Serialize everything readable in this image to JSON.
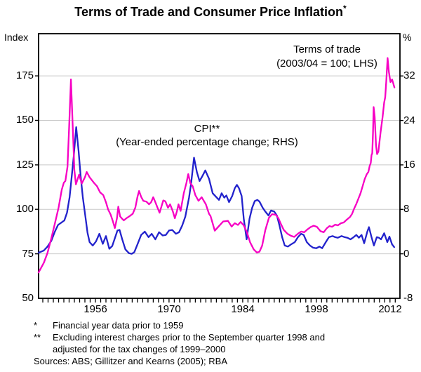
{
  "title": {
    "text": "Terms of Trade and Consumer Price Inflation",
    "marker": "*"
  },
  "axes": {
    "left_unit": "Index",
    "right_unit": "%",
    "left_ticks": [
      175,
      150,
      125,
      100,
      75,
      50
    ],
    "right_ticks": [
      32,
      24,
      16,
      8,
      0,
      -8
    ],
    "x_ticks": [
      1956,
      1970,
      1984,
      1998,
      2012
    ]
  },
  "legend": {
    "tot_label": "Terms of trade",
    "tot_sub": "(2003/04 = 100; LHS)",
    "cpi_label": "CPI**",
    "cpi_sub": "(Year-ended percentage change; RHS)"
  },
  "footnotes": [
    {
      "marker": "*",
      "lines": [
        "Financial year data prior to 1959"
      ]
    },
    {
      "marker": "**",
      "lines": [
        "Excluding interest charges prior to the September quarter 1998 and",
        "adjusted for the tax changes of 1999–2000"
      ]
    }
  ],
  "sources": "Sources: ABS; Gillitzer and Kearns (2005); RBA",
  "colors": {
    "terms_of_trade": "#f700c4",
    "cpi": "#2222cc",
    "grid": "#c9c9c9",
    "frame": "#000000"
  },
  "chart_data": {
    "type": "line",
    "title": "Terms of Trade and Consumer Price Inflation",
    "x_range": [
      1945.2,
      2013.9
    ],
    "x_label_years": [
      1956,
      1970,
      1984,
      1998,
      2012
    ],
    "x_minor_tick_every": 1,
    "grid": true,
    "left_axis": {
      "label": "Index (2003/04 = 100)",
      "range": [
        50,
        198.7
      ],
      "gridlines": [
        75,
        100,
        125,
        150,
        175
      ]
    },
    "right_axis": {
      "label": "Year-ended percentage change (%)",
      "range": [
        -8,
        39.6
      ],
      "gridline_values": [
        0,
        8,
        16,
        24,
        32
      ]
    },
    "series": [
      {
        "name": "Terms of trade (2003/04 = 100; LHS)",
        "axis": "left",
        "color": "#f700c4",
        "points": [
          [
            1945.2,
            64.5
          ],
          [
            1946.2,
            70
          ],
          [
            1946.9,
            75.5
          ],
          [
            1947.6,
            83.5
          ],
          [
            1948.3,
            92
          ],
          [
            1949.0,
            101
          ],
          [
            1949.6,
            111
          ],
          [
            1950.0,
            115
          ],
          [
            1950.3,
            116
          ],
          [
            1950.7,
            124
          ],
          [
            1951.0,
            146
          ],
          [
            1951.35,
            173
          ],
          [
            1951.7,
            146
          ],
          [
            1952.0,
            122
          ],
          [
            1952.3,
            114
          ],
          [
            1952.9,
            119.5
          ],
          [
            1953.4,
            114.5
          ],
          [
            1954.0,
            118
          ],
          [
            1954.35,
            121
          ],
          [
            1954.9,
            118
          ],
          [
            1955.7,
            115
          ],
          [
            1956.3,
            113
          ],
          [
            1956.9,
            109.5
          ],
          [
            1957.5,
            108
          ],
          [
            1958.0,
            104
          ],
          [
            1958.4,
            100
          ],
          [
            1958.9,
            97
          ],
          [
            1959.3,
            93.5
          ],
          [
            1959.7,
            89.5
          ],
          [
            1960.1,
            95
          ],
          [
            1960.35,
            101.5
          ],
          [
            1960.7,
            96
          ],
          [
            1961.0,
            95
          ],
          [
            1961.4,
            93.8
          ],
          [
            1962.0,
            95.2
          ],
          [
            1962.5,
            96.2
          ],
          [
            1963.1,
            97.5
          ],
          [
            1963.6,
            101
          ],
          [
            1964.0,
            107
          ],
          [
            1964.3,
            110.3
          ],
          [
            1964.7,
            107
          ],
          [
            1965.1,
            104.8
          ],
          [
            1965.7,
            104.3
          ],
          [
            1966.2,
            102.8
          ],
          [
            1966.6,
            104
          ],
          [
            1967.0,
            106.8
          ],
          [
            1967.4,
            104
          ],
          [
            1967.8,
            101
          ],
          [
            1968.2,
            98.1
          ],
          [
            1968.6,
            102
          ],
          [
            1968.9,
            105
          ],
          [
            1969.3,
            104.5
          ],
          [
            1969.8,
            100.9
          ],
          [
            1970.2,
            102.8
          ],
          [
            1970.7,
            99
          ],
          [
            1971.1,
            95
          ],
          [
            1971.5,
            99
          ],
          [
            1971.8,
            102.8
          ],
          [
            1972.2,
            99.1
          ],
          [
            1972.8,
            109
          ],
          [
            1973.3,
            114.7
          ],
          [
            1973.65,
            119.8
          ],
          [
            1974.05,
            114.7
          ],
          [
            1974.5,
            113
          ],
          [
            1975.0,
            108
          ],
          [
            1975.6,
            104.8
          ],
          [
            1976.2,
            106.8
          ],
          [
            1977.0,
            102.8
          ],
          [
            1977.6,
            97.5
          ],
          [
            1977.9,
            96.2
          ],
          [
            1978.7,
            88
          ],
          [
            1979.4,
            90.3
          ],
          [
            1980.3,
            93.2
          ],
          [
            1981.2,
            93.5
          ],
          [
            1981.9,
            90.3
          ],
          [
            1982.5,
            92.2
          ],
          [
            1983.1,
            91.2
          ],
          [
            1983.6,
            92.9
          ],
          [
            1984.2,
            91
          ],
          [
            1984.8,
            87.1
          ],
          [
            1985.4,
            81.5
          ],
          [
            1986.1,
            77.5
          ],
          [
            1986.7,
            75.7
          ],
          [
            1987.2,
            76.2
          ],
          [
            1987.7,
            79.6
          ],
          [
            1988.3,
            88.3
          ],
          [
            1989.0,
            95.3
          ],
          [
            1989.6,
            97.3
          ],
          [
            1990.3,
            96.9
          ],
          [
            1990.8,
            95
          ],
          [
            1991.2,
            92.2
          ],
          [
            1991.8,
            88.5
          ],
          [
            1992.5,
            86.3
          ],
          [
            1993.2,
            85.1
          ],
          [
            1993.8,
            84.5
          ],
          [
            1994.5,
            86.3
          ],
          [
            1995.1,
            87.5
          ],
          [
            1995.7,
            87.1
          ],
          [
            1996.3,
            88.7
          ],
          [
            1996.9,
            90
          ],
          [
            1997.5,
            90.8
          ],
          [
            1998.1,
            90.2
          ],
          [
            1998.8,
            87.7
          ],
          [
            1999.4,
            87.1
          ],
          [
            2000.0,
            89.4
          ],
          [
            2000.5,
            90.6
          ],
          [
            2001.0,
            90.2
          ],
          [
            2001.6,
            91.4
          ],
          [
            2002.1,
            91
          ],
          [
            2002.7,
            92.2
          ],
          [
            2003.2,
            92.6
          ],
          [
            2003.8,
            94.2
          ],
          [
            2004.4,
            95.7
          ],
          [
            2004.8,
            97.5
          ],
          [
            2005.2,
            100.5
          ],
          [
            2005.6,
            103
          ],
          [
            2006.0,
            106
          ],
          [
            2006.4,
            109
          ],
          [
            2006.8,
            113
          ],
          [
            2007.2,
            117
          ],
          [
            2007.6,
            119.8
          ],
          [
            2007.9,
            121
          ],
          [
            2008.15,
            124.5
          ],
          [
            2008.35,
            126
          ],
          [
            2008.5,
            130.5
          ],
          [
            2008.63,
            131.5
          ],
          [
            2008.78,
            143
          ],
          [
            2008.9,
            157.5
          ],
          [
            2009.1,
            152
          ],
          [
            2009.35,
            136
          ],
          [
            2009.55,
            131
          ],
          [
            2009.8,
            132.5
          ],
          [
            2010.2,
            143
          ],
          [
            2010.6,
            152
          ],
          [
            2010.9,
            160
          ],
          [
            2011.1,
            163
          ],
          [
            2011.3,
            172
          ],
          [
            2011.55,
            185
          ],
          [
            2011.8,
            177
          ],
          [
            2012.1,
            171.5
          ],
          [
            2012.4,
            173
          ],
          [
            2012.6,
            171
          ],
          [
            2012.85,
            168.5
          ]
        ]
      },
      {
        "name": "CPI (year-ended percentage change; RHS)",
        "axis": "right",
        "color": "#2222cc",
        "points": [
          [
            1945.2,
            0.2
          ],
          [
            1946.2,
            0.6
          ],
          [
            1946.9,
            1.3
          ],
          [
            1947.6,
            2.3
          ],
          [
            1948.3,
            4.0
          ],
          [
            1948.9,
            5.2
          ],
          [
            1949.5,
            5.6
          ],
          [
            1950.1,
            6.0
          ],
          [
            1950.6,
            7.4
          ],
          [
            1951.1,
            10.2
          ],
          [
            1951.5,
            13.9
          ],
          [
            1951.9,
            17.7
          ],
          [
            1952.35,
            22.8
          ],
          [
            1952.8,
            18.5
          ],
          [
            1953.2,
            13.9
          ],
          [
            1953.6,
            10.2
          ],
          [
            1954.1,
            6.7
          ],
          [
            1954.5,
            3.8
          ],
          [
            1954.9,
            2.1
          ],
          [
            1955.5,
            1.5
          ],
          [
            1956.1,
            2.2
          ],
          [
            1956.75,
            3.6
          ],
          [
            1957.4,
            1.8
          ],
          [
            1958.0,
            3.2
          ],
          [
            1958.65,
            0.9
          ],
          [
            1959.2,
            1.4
          ],
          [
            1959.6,
            2.5
          ],
          [
            1960.2,
            4.2
          ],
          [
            1960.6,
            4.3
          ],
          [
            1961.1,
            2.6
          ],
          [
            1961.7,
            0.8
          ],
          [
            1962.4,
            0.1
          ],
          [
            1962.9,
            0.0
          ],
          [
            1963.4,
            0.3
          ],
          [
            1964.0,
            1.7
          ],
          [
            1964.7,
            3.4
          ],
          [
            1965.4,
            4.0
          ],
          [
            1966.1,
            3.0
          ],
          [
            1966.7,
            3.6
          ],
          [
            1967.4,
            2.6
          ],
          [
            1968.1,
            3.9
          ],
          [
            1968.8,
            3.3
          ],
          [
            1969.4,
            3.4
          ],
          [
            1970.0,
            4.2
          ],
          [
            1970.6,
            4.3
          ],
          [
            1971.3,
            3.6
          ],
          [
            1971.9,
            3.9
          ],
          [
            1972.5,
            5.1
          ],
          [
            1973.1,
            6.7
          ],
          [
            1973.8,
            10.1
          ],
          [
            1974.2,
            12.7
          ],
          [
            1974.75,
            17.3
          ],
          [
            1975.3,
            14.7
          ],
          [
            1975.8,
            13.1
          ],
          [
            1976.3,
            13.9
          ],
          [
            1976.9,
            15.0
          ],
          [
            1977.6,
            13.5
          ],
          [
            1978.3,
            10.9
          ],
          [
            1979.0,
            10.2
          ],
          [
            1979.5,
            9.7
          ],
          [
            1980.0,
            10.9
          ],
          [
            1980.5,
            10.1
          ],
          [
            1980.9,
            10.5
          ],
          [
            1981.4,
            9.3
          ],
          [
            1982.0,
            10.4
          ],
          [
            1982.5,
            11.8
          ],
          [
            1982.9,
            12.4
          ],
          [
            1983.3,
            11.8
          ],
          [
            1983.8,
            10.4
          ],
          [
            1984.2,
            6.3
          ],
          [
            1984.75,
            2.6
          ],
          [
            1985.3,
            6.3
          ],
          [
            1985.8,
            8.3
          ],
          [
            1986.3,
            9.5
          ],
          [
            1986.8,
            9.7
          ],
          [
            1987.2,
            9.4
          ],
          [
            1987.8,
            8.3
          ],
          [
            1988.3,
            7.6
          ],
          [
            1988.9,
            6.9
          ],
          [
            1989.4,
            7.8
          ],
          [
            1990.0,
            7.6
          ],
          [
            1990.5,
            6.9
          ],
          [
            1991.0,
            5.1
          ],
          [
            1991.5,
            3.0
          ],
          [
            1992.0,
            1.5
          ],
          [
            1992.6,
            1.3
          ],
          [
            1993.2,
            1.7
          ],
          [
            1993.9,
            2.1
          ],
          [
            1994.5,
            3.0
          ],
          [
            1995.1,
            3.6
          ],
          [
            1995.6,
            3.4
          ],
          [
            1996.2,
            2.1
          ],
          [
            1996.8,
            1.5
          ],
          [
            1997.4,
            1.1
          ],
          [
            1998.0,
            1.0
          ],
          [
            1998.6,
            1.3
          ],
          [
            1999.1,
            1.0
          ],
          [
            1999.8,
            2.1
          ],
          [
            2000.4,
            3.0
          ],
          [
            2001.1,
            3.2
          ],
          [
            2001.6,
            3.0
          ],
          [
            2002.1,
            2.9
          ],
          [
            2002.8,
            3.2
          ],
          [
            2003.4,
            3.0
          ],
          [
            2003.9,
            2.9
          ],
          [
            2004.5,
            2.6
          ],
          [
            2005.1,
            3.0
          ],
          [
            2005.6,
            3.4
          ],
          [
            2006.1,
            2.9
          ],
          [
            2006.6,
            3.4
          ],
          [
            2007.1,
            1.9
          ],
          [
            2007.7,
            4.0
          ],
          [
            2008.0,
            4.8
          ],
          [
            2008.5,
            3.0
          ],
          [
            2008.95,
            1.5
          ],
          [
            2009.5,
            3.0
          ],
          [
            2009.9,
            2.9
          ],
          [
            2010.3,
            2.6
          ],
          [
            2010.9,
            3.7
          ],
          [
            2011.5,
            2.1
          ],
          [
            2011.9,
            3.1
          ],
          [
            2012.4,
            1.7
          ],
          [
            2012.8,
            1.2
          ]
        ]
      }
    ]
  }
}
